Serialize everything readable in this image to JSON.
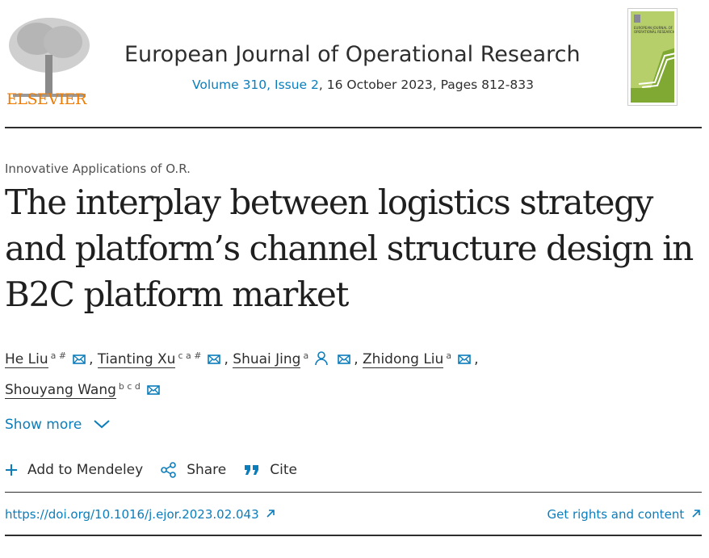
{
  "header": {
    "publisher": "ELSEVIER",
    "journal_title": "European Journal of Operational Research",
    "volume_issue": "Volume 310, Issue 2",
    "issue_details": ", 16 October 2023, Pages 812-833",
    "cover_text": "EUROPEAN JOURNAL OF OPERATIONAL RESEARCH"
  },
  "article": {
    "section": "Innovative Applications of O.R.",
    "title": "The interplay between logistics strategy and platform’s channel structure design in B2C platform market",
    "authors": [
      {
        "name": "He Liu",
        "sup": "a #"
      },
      {
        "name": "Tianting Xu",
        "sup": "c a #"
      },
      {
        "name": "Shuai Jing",
        "sup": "a"
      },
      {
        "name": "Zhidong Liu",
        "sup": "a"
      },
      {
        "name": "Shouyang Wang",
        "sup": "b c d"
      }
    ],
    "show_more": "Show more"
  },
  "actions": {
    "mendeley": "Add to Mendeley",
    "share": "Share",
    "cite": "Cite"
  },
  "links": {
    "doi": "https://doi.org/10.1016/j.ejor.2023.02.043",
    "rights": "Get rights and content"
  },
  "colors": {
    "link": "#0c7dbb",
    "elsevier": "#f07c00"
  }
}
